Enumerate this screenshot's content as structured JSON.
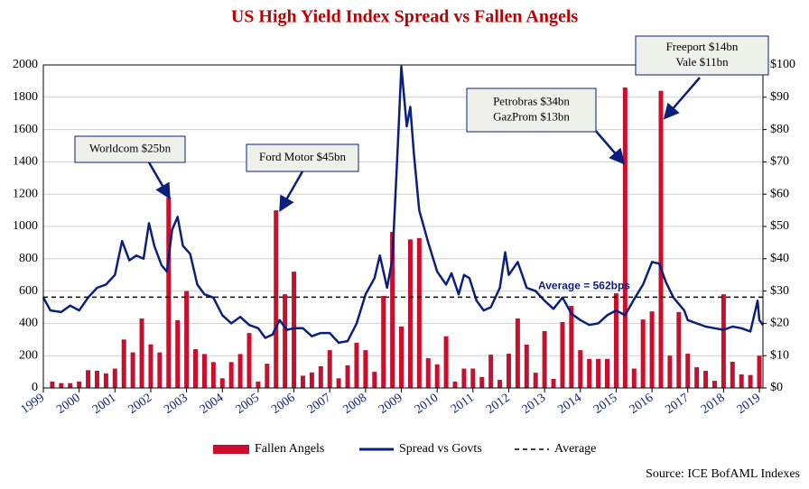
{
  "chart_data": {
    "type": "bar",
    "title": "US High Yield Index Spread vs Fallen Angels",
    "source": "Source: ICE BofAML Indexes",
    "xlim": [
      1999,
      2019.1
    ],
    "xticks": [
      1999,
      2000,
      2001,
      2002,
      2003,
      2004,
      2005,
      2006,
      2007,
      2008,
      2009,
      2010,
      2011,
      2012,
      2013,
      2014,
      2015,
      2016,
      2017,
      2018,
      2019
    ],
    "ylim": [
      0,
      2000
    ],
    "yticks": [
      0,
      200,
      400,
      600,
      800,
      1000,
      1200,
      1400,
      1600,
      1800,
      2000
    ],
    "y2lim": [
      0,
      100
    ],
    "y2ticks": [
      {
        "value": 0,
        "label": "$0"
      },
      {
        "value": 10,
        "label": "$10"
      },
      {
        "value": 20,
        "label": "$20"
      },
      {
        "value": 30,
        "label": "$30"
      },
      {
        "value": 40,
        "label": "$40"
      },
      {
        "value": 50,
        "label": "$50"
      },
      {
        "value": 60,
        "label": "$60"
      },
      {
        "value": 70,
        "label": "$70"
      },
      {
        "value": 80,
        "label": "$80"
      },
      {
        "value": 90,
        "label": "$90"
      },
      {
        "value": 100,
        "label": "$100"
      }
    ],
    "grid": true,
    "series": [
      {
        "name": "Fallen Angels",
        "type": "bar",
        "axis": "y2",
        "color": "#c8102e",
        "x": [
          1999.25,
          1999.5,
          1999.75,
          2000,
          2000.25,
          2000.5,
          2000.75,
          2001,
          2001.25,
          2001.5,
          2001.75,
          2002,
          2002.25,
          2002.5,
          2002.75,
          2003,
          2003.25,
          2003.5,
          2003.75,
          2004,
          2004.25,
          2004.5,
          2004.75,
          2005,
          2005.25,
          2005.5,
          2005.75,
          2006,
          2006.25,
          2006.5,
          2006.75,
          2007,
          2007.25,
          2007.5,
          2007.75,
          2008,
          2008.25,
          2008.5,
          2008.75,
          2009,
          2009.25,
          2009.5,
          2009.75,
          2010,
          2010.25,
          2010.5,
          2010.75,
          2011,
          2011.25,
          2011.5,
          2011.75,
          2012,
          2012.25,
          2012.5,
          2012.75,
          2013,
          2013.25,
          2013.5,
          2013.75,
          2014,
          2014.25,
          2014.5,
          2014.75,
          2015,
          2015.25,
          2015.5,
          2015.75,
          2016,
          2016.25,
          2016.5,
          2016.75,
          2017,
          2017.25,
          2017.5,
          2017.75,
          2018,
          2018.25,
          2018.5,
          2018.75,
          2019
        ],
        "values": [
          2,
          1.5,
          1.5,
          2,
          5.5,
          5.3,
          4.5,
          6,
          15,
          11,
          21.5,
          13.5,
          11,
          59,
          21,
          30,
          12,
          10.5,
          8,
          3,
          8,
          10.5,
          17,
          2,
          7.5,
          55,
          29,
          36,
          3.8,
          4.8,
          6.7,
          11.7,
          3,
          7,
          14,
          11.7,
          5,
          28.5,
          48.3,
          19,
          46,
          46.4,
          9.2,
          7.3,
          16,
          2,
          6,
          6,
          3.4,
          10.3,
          2.5,
          10.6,
          21.5,
          13.4,
          4.7,
          17.6,
          2.8,
          20.4,
          25.4,
          11.7,
          9,
          9,
          9,
          29.3,
          93,
          6,
          21.2,
          23.7,
          92,
          10,
          23.5,
          10.6,
          6.4,
          5.3,
          2.2,
          29,
          8.1,
          4.2,
          4,
          10
        ]
      },
      {
        "name": "Spread vs Govts",
        "type": "line",
        "axis": "y",
        "color": "#0b1f7c",
        "x": [
          1999.0,
          1999.2,
          1999.5,
          1999.75,
          2000.0,
          2000.25,
          2000.5,
          2000.75,
          2001.0,
          2001.2,
          2001.4,
          2001.6,
          2001.8,
          2001.95,
          2002.1,
          2002.3,
          2002.45,
          2002.6,
          2002.75,
          2002.9,
          2003.1,
          2003.3,
          2003.5,
          2003.75,
          2004.0,
          2004.25,
          2004.5,
          2004.75,
          2005.0,
          2005.2,
          2005.4,
          2005.6,
          2005.8,
          2006.0,
          2006.25,
          2006.5,
          2006.75,
          2007.0,
          2007.25,
          2007.5,
          2007.75,
          2008.0,
          2008.25,
          2008.4,
          2008.6,
          2008.75,
          2008.9,
          2009.0,
          2009.15,
          2009.25,
          2009.35,
          2009.5,
          2009.75,
          2010.0,
          2010.25,
          2010.4,
          2010.6,
          2010.75,
          2010.9,
          2011.1,
          2011.3,
          2011.5,
          2011.75,
          2011.9,
          2012.0,
          2012.25,
          2012.5,
          2012.75,
          2013.0,
          2013.25,
          2013.5,
          2013.75,
          2014.0,
          2014.25,
          2014.5,
          2014.75,
          2015.0,
          2015.25,
          2015.5,
          2015.75,
          2016.0,
          2016.2,
          2016.4,
          2016.6,
          2016.9,
          2017.0,
          2017.25,
          2017.5,
          2017.75,
          2018.0,
          2018.25,
          2018.5,
          2018.75,
          2018.95,
          2019.0,
          2019.1
        ],
        "values": [
          560,
          480,
          470,
          510,
          480,
          560,
          620,
          640,
          700,
          910,
          790,
          820,
          800,
          1020,
          880,
          760,
          720,
          980,
          1060,
          880,
          830,
          640,
          580,
          560,
          450,
          400,
          440,
          390,
          370,
          310,
          330,
          420,
          360,
          370,
          370,
          320,
          340,
          340,
          280,
          290,
          400,
          580,
          680,
          820,
          620,
          800,
          1500,
          1990,
          1620,
          1740,
          1450,
          1100,
          900,
          720,
          640,
          710,
          580,
          700,
          680,
          540,
          480,
          500,
          620,
          840,
          700,
          780,
          620,
          600,
          540,
          490,
          560,
          460,
          420,
          390,
          400,
          450,
          480,
          450,
          550,
          640,
          780,
          770,
          650,
          560,
          480,
          420,
          400,
          380,
          370,
          360,
          380,
          370,
          350,
          540,
          420,
          390
        ]
      }
    ],
    "average": {
      "name": "Average",
      "value": 562,
      "label": "Average = 562bps"
    },
    "annotations": [
      {
        "lines": [
          "Worldcom $25bn"
        ]
      },
      {
        "lines": [
          "Ford Motor $45bn"
        ]
      },
      {
        "lines": [
          "Petrobras $34bn",
          "GazProm $13bn"
        ]
      },
      {
        "lines": [
          "Freeport $14bn",
          "Vale $11bn"
        ]
      }
    ]
  }
}
